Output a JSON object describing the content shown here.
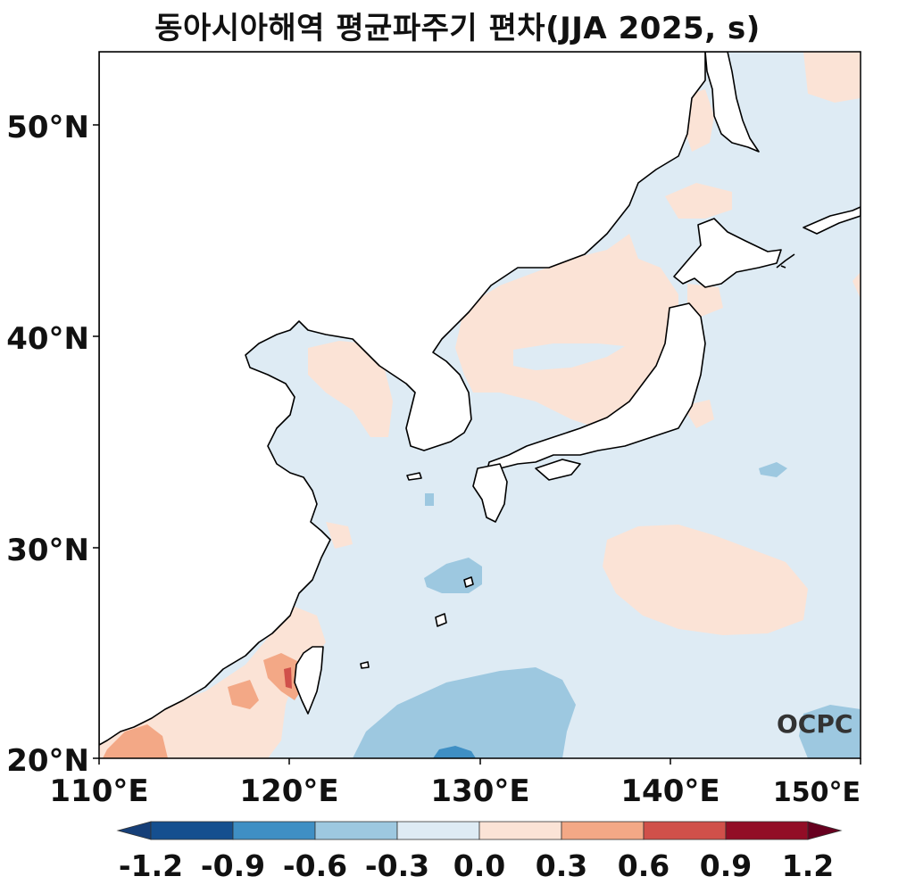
{
  "title": "동아시아해역 평균파주기 편차(JJA 2025, s)",
  "watermark": "OCPC",
  "axes": {
    "lat_ticks": [
      "20°N",
      "30°N",
      "40°N",
      "50°N"
    ],
    "lon_ticks": [
      "110°E",
      "120°E",
      "130°E",
      "140°E",
      "150°E"
    ]
  },
  "colorbar": {
    "ticks": [
      "-1.2",
      "-0.9",
      "-0.6",
      "-0.3",
      "0.0",
      "0.3",
      "0.6",
      "0.9",
      "1.2"
    ],
    "colors": [
      "#163f78",
      "#154f8f",
      "#3f8fc4",
      "#9dc8e0",
      "#deebf4",
      "#fbe3d6",
      "#f3a886",
      "#d0504a",
      "#920d26",
      "#67001f"
    ]
  },
  "colors": {
    "neutral_neg": "#deebf4",
    "neutral_pos": "#fbe3d6",
    "light_blue": "#9dc8e0",
    "mid_blue": "#3f8fc4",
    "light_red": "#f3a886",
    "mid_red": "#d0504a",
    "land": "#ffffff",
    "coast": "#000000"
  }
}
